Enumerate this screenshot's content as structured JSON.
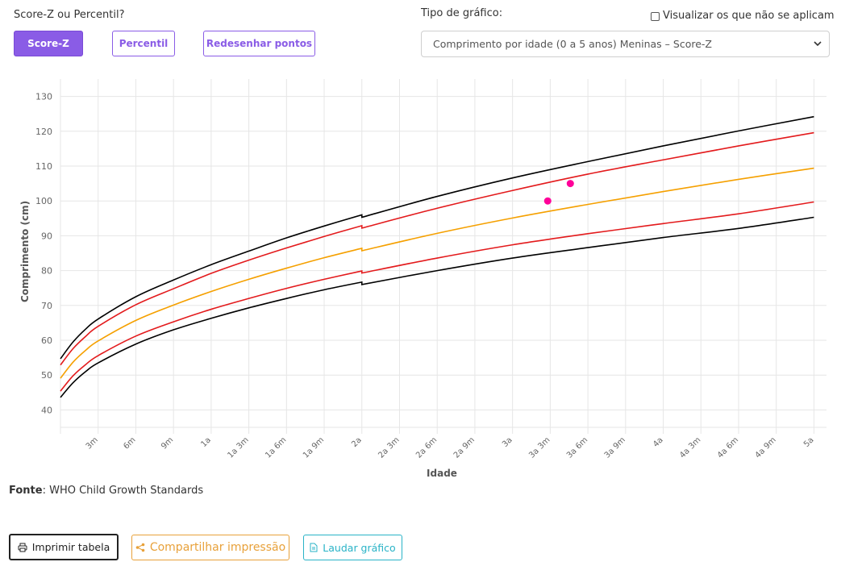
{
  "header": {
    "question": "Score-Z ou Percentil?",
    "buttons": {
      "score_z": "Score-Z",
      "percentil": "Percentil",
      "redesenhar": "Redesenhar pontos"
    },
    "tipo_label": "Tipo de gráfico:",
    "checkbox_label": "Visualizar os que não se aplicam",
    "select_value": "Comprimento por idade (0 a 5 anos) Meninas – Score-Z"
  },
  "chart_data": {
    "type": "line",
    "xlabel": "Idade",
    "ylabel": "Comprimento (cm)",
    "ylim": [
      35,
      135
    ],
    "xlim": [
      0,
      61
    ],
    "y_ticks": [
      40,
      50,
      60,
      70,
      80,
      90,
      100,
      110,
      120,
      130
    ],
    "x_ticks": [
      {
        "month": 3,
        "label": "3m"
      },
      {
        "month": 6,
        "label": "6m"
      },
      {
        "month": 9,
        "label": "9m"
      },
      {
        "month": 12,
        "label": "1a"
      },
      {
        "month": 15,
        "label": "1a 3m"
      },
      {
        "month": 18,
        "label": "1a 6m"
      },
      {
        "month": 21,
        "label": "1a 9m"
      },
      {
        "month": 24,
        "label": "2a"
      },
      {
        "month": 27,
        "label": "2a 3m"
      },
      {
        "month": 30,
        "label": "2a 6m"
      },
      {
        "month": 33,
        "label": "2a 9m"
      },
      {
        "month": 36,
        "label": "3a"
      },
      {
        "month": 39,
        "label": "3a 3m"
      },
      {
        "month": 42,
        "label": "3a 6m"
      },
      {
        "month": 45,
        "label": "3a 9m"
      },
      {
        "month": 48,
        "label": "4a"
      },
      {
        "month": 51,
        "label": "4a 3m"
      },
      {
        "month": 54,
        "label": "4a 6m"
      },
      {
        "month": 57,
        "label": "4a 9m"
      },
      {
        "month": 60,
        "label": "5a"
      }
    ],
    "grid": true,
    "x": [
      0,
      1,
      2,
      3,
      6,
      9,
      12,
      15,
      18,
      21,
      24,
      24,
      30,
      36,
      42,
      48,
      54,
      60
    ],
    "series": [
      {
        "color": "#000000",
        "values": [
          54.7,
          59.5,
          63.2,
          66.1,
          72.5,
          77.3,
          81.7,
          85.6,
          89.4,
          92.8,
          96.0,
          95.3,
          101.3,
          106.6,
          111.3,
          115.8,
          120.1,
          124.2
        ]
      },
      {
        "color": "#e31a1c",
        "values": [
          52.9,
          57.6,
          61.1,
          64.0,
          70.2,
          74.8,
          79.2,
          83.0,
          86.5,
          89.8,
          92.9,
          92.2,
          97.9,
          103.0,
          107.7,
          111.8,
          115.8,
          119.6
        ]
      },
      {
        "color": "#f5a000",
        "values": [
          49.1,
          53.7,
          57.1,
          59.8,
          65.7,
          70.1,
          74.0,
          77.5,
          80.7,
          83.7,
          86.4,
          85.7,
          90.7,
          95.1,
          99.0,
          102.7,
          106.2,
          109.4
        ]
      },
      {
        "color": "#e31a1c",
        "values": [
          45.4,
          49.8,
          53.0,
          55.6,
          61.2,
          65.3,
          68.9,
          72.0,
          74.9,
          77.5,
          79.9,
          79.3,
          83.6,
          87.4,
          90.6,
          93.5,
          96.3,
          99.7
        ]
      },
      {
        "color": "#000000",
        "values": [
          43.6,
          47.8,
          51.0,
          53.5,
          58.9,
          63.0,
          66.3,
          69.3,
          72.0,
          74.5,
          76.7,
          76.0,
          80.0,
          83.6,
          86.6,
          89.5,
          92.1,
          95.3
        ]
      }
    ],
    "points": [
      {
        "x": 38.8,
        "y": 100.0,
        "color": "#ff0099"
      },
      {
        "x": 40.6,
        "y": 105.0,
        "color": "#ff0099"
      }
    ]
  },
  "source": {
    "bold": "Fonte",
    "text": ": WHO Child Growth Standards"
  },
  "footer": {
    "imprimir": "Imprimir tabela",
    "compartilhar": "Compartilhar impressão",
    "laudar": "Laudar gráfico"
  },
  "colors": {
    "accent": "#8a5ce6",
    "share": "#e8a13a",
    "laudar": "#29b3c7"
  }
}
